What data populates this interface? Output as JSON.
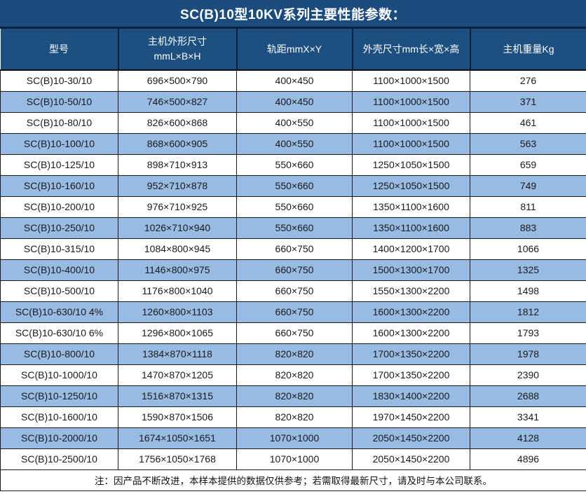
{
  "title": "SC(B)10型10KV系列主要性能参数：",
  "note": "注：因产品不断改进，本样本提供的数据仅供参考；若需取得最新尺寸，请及时与本公司联系。",
  "colors": {
    "title_bg": "#1C4C7E",
    "header_bg": "#1D5080",
    "header_divider": "#0D2238",
    "row_bg": "#FFFFFF",
    "row_alt_bg": "#98BBE3",
    "cell_border": "#1A1A1A",
    "header_text": "#FFFFFF",
    "cell_text": "#1A1A1A"
  },
  "table": {
    "headers": [
      {
        "label": "型号"
      },
      {
        "label": "主机外形尺寸",
        "sub": "mmL×B×H"
      },
      {
        "label": "轨距mmX×Y"
      },
      {
        "label": "外壳尺寸mm长×宽×高"
      },
      {
        "label": "主机重量Kg"
      }
    ],
    "rows": [
      [
        "SC(B)10-30/10",
        "696×500×790",
        "400×450",
        "1100×1000×1500",
        "276"
      ],
      [
        "SC(B)10-50/10",
        "746×500×827",
        "400×450",
        "1100×1000×1500",
        "371"
      ],
      [
        "SC(B)10-80/10",
        "826×600×868",
        "400×550",
        "1100×1000×1500",
        "461"
      ],
      [
        "SC(B)10-100/10",
        "868×600×905",
        "400×550",
        "1100×1000×1500",
        "563"
      ],
      [
        "SC(B)10-125/10",
        "898×710×913",
        "550×660",
        "1250×1050×1500",
        "659"
      ],
      [
        "SC(B)10-160/10",
        "952×710×878",
        "550×660",
        "1250×1050×1500",
        "749"
      ],
      [
        "SC(B)10-200/10",
        "976×710×925",
        "550×660",
        "1350×1100×1600",
        "811"
      ],
      [
        "SC(B)10-250/10",
        "1026×710×940",
        "550×660",
        "1350×1100×1600",
        "883"
      ],
      [
        "SC(B)10-315/10",
        "1084×800×945",
        "660×750",
        "1400×1200×1700",
        "1066"
      ],
      [
        "SC(B)10-400/10",
        "1146×800×975",
        "660×750",
        "1500×1300×1700",
        "1325"
      ],
      [
        "SC(B)10-500/10",
        "1176×800×1040",
        "660×750",
        "1550×1300×2200",
        "1498"
      ],
      [
        "SC(B)10-630/10 4%",
        "1260×800×1103",
        "660×750",
        "1600×1300×2200",
        "1812"
      ],
      [
        "SC(B)10-630/10 6%",
        "1296×800×1065",
        "660×750",
        "1600×1300×2200",
        "1793"
      ],
      [
        "SC(B)10-800/10",
        "1384×870×1118",
        "820×820",
        "1700×1350×2200",
        "1978"
      ],
      [
        "SC(B)10-1000/10",
        "1470×870×1205",
        "820×820",
        "1700×1350×2200",
        "2390"
      ],
      [
        "SC(B)10-1250/10",
        "1516×870×1315",
        "820×820",
        "1830×1400×2200",
        "2688"
      ],
      [
        "SC(B)10-1600/10",
        "1590×870×1506",
        "820×820",
        "1970×1450×2200",
        "3341"
      ],
      [
        "SC(B)10-2000/10",
        "1674×1050×1651",
        "1070×1000",
        "2050×1450×2200",
        "4128"
      ],
      [
        "SC(B)10-2500/10",
        "1756×1050×1768",
        "1070×1000",
        "2050×1450×2200",
        "4896"
      ]
    ]
  }
}
